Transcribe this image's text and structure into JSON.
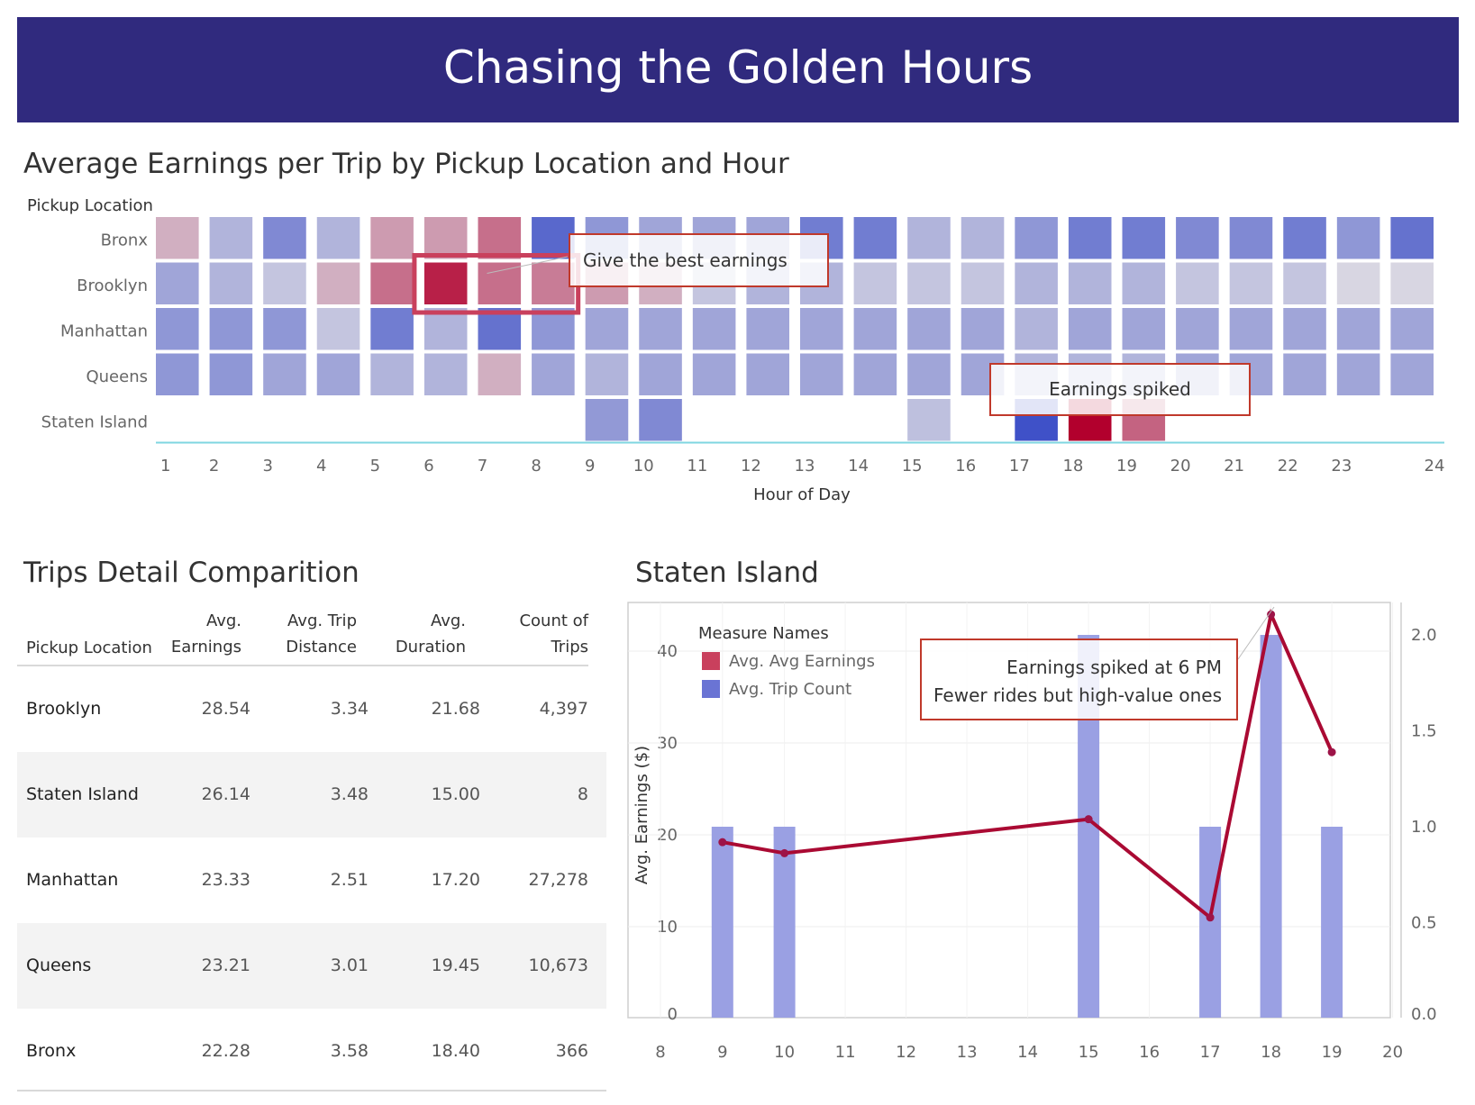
{
  "header": {
    "title": "Chasing the Golden Hours"
  },
  "heatmap": {
    "title": "Average Earnings per Trip by Pickup Location and Hour",
    "callouts": {
      "best": "Give the best earnings",
      "spike": "Earnings spiked"
    }
  },
  "table": {
    "title": "Trips Detail Comparition",
    "headers": {
      "location": "Pickup Location",
      "earnings": [
        "Avg.",
        "Earnings"
      ],
      "distance": [
        "Avg. Trip",
        "Distance"
      ],
      "duration": [
        "Avg.",
        "Duration"
      ],
      "count": [
        "Count of",
        "Trips"
      ]
    },
    "rows": [
      {
        "location": "Brooklyn",
        "earnings": "28.54",
        "distance": "3.34",
        "duration": "21.68",
        "count": "4,397"
      },
      {
        "location": "Staten Island",
        "earnings": "26.14",
        "distance": "3.48",
        "duration": "15.00",
        "count": "8"
      },
      {
        "location": "Manhattan",
        "earnings": "23.33",
        "distance": "2.51",
        "duration": "17.20",
        "count": "27,278"
      },
      {
        "location": "Queens",
        "earnings": "23.21",
        "distance": "3.01",
        "duration": "19.45",
        "count": "10,673"
      },
      {
        "location": "Bronx",
        "earnings": "22.28",
        "distance": "3.58",
        "duration": "18.40",
        "count": "366"
      }
    ]
  },
  "line_panel": {
    "title": "Staten Island",
    "callout": [
      "Earnings spiked at 6 PM",
      "Fewer rides but high-value ones"
    ]
  },
  "colors": {
    "banner": "#302a7e",
    "high": "#b2002d",
    "low": "#3f51c8",
    "bar": "#9aa0e3",
    "line": "#aa0a33",
    "callout_border": "#c0392b"
  },
  "chart_data": [
    {
      "type": "heatmap",
      "title": "Average Earnings per Trip by Pickup Location and Hour",
      "xlabel": "Hour of Day",
      "ylabel": "Pickup Location",
      "x": [
        1,
        2,
        3,
        4,
        5,
        6,
        7,
        8,
        9,
        10,
        11,
        12,
        13,
        14,
        15,
        16,
        17,
        18,
        19,
        20,
        21,
        22,
        23,
        24
      ],
      "y": [
        "Bronx",
        "Brooklyn",
        "Manhattan",
        "Queens",
        "Staten Island"
      ],
      "values": [
        [
          24,
          21,
          18,
          21,
          25,
          25,
          28,
          15,
          19,
          20,
          20,
          20,
          17,
          17,
          21,
          21,
          19,
          17,
          17,
          18,
          18,
          17,
          19,
          16
        ],
        [
          20,
          21,
          22,
          24,
          28,
          36,
          28,
          27,
          25,
          24,
          22,
          21,
          21,
          22,
          22,
          22,
          21,
          21,
          21,
          22,
          22,
          22,
          23,
          23
        ],
        [
          19,
          19,
          19,
          22,
          17,
          21,
          16,
          19,
          20,
          20,
          20,
          20,
          20,
          20,
          20,
          20,
          21,
          20,
          20,
          20,
          20,
          20,
          20,
          20
        ],
        [
          19,
          19,
          20,
          20,
          21,
          21,
          24,
          20,
          21,
          20,
          20,
          20,
          20,
          20,
          20,
          20,
          21,
          21,
          21,
          20,
          20,
          20,
          20,
          20
        ],
        [
          null,
          null,
          null,
          null,
          null,
          null,
          null,
          null,
          19.2,
          18,
          null,
          null,
          null,
          null,
          21.7,
          null,
          11,
          44,
          29,
          null,
          null,
          null,
          null,
          null
        ]
      ],
      "highlight": {
        "row": "Brooklyn",
        "hours": [
          6,
          7,
          8
        ]
      },
      "annotations": [
        "Give the best earnings",
        "Earnings spiked"
      ]
    },
    {
      "type": "table",
      "title": "Trips Detail Comparition",
      "columns": [
        "Pickup Location",
        "Avg. Earnings",
        "Avg. Trip Distance",
        "Avg. Duration",
        "Count of Trips"
      ],
      "rows": [
        [
          "Brooklyn",
          28.54,
          3.34,
          21.68,
          4397
        ],
        [
          "Staten Island",
          26.14,
          3.48,
          15.0,
          8
        ],
        [
          "Manhattan",
          23.33,
          2.51,
          17.2,
          27278
        ],
        [
          "Queens",
          23.21,
          3.01,
          19.45,
          10673
        ],
        [
          "Bronx",
          22.28,
          3.58,
          18.4,
          366
        ]
      ]
    },
    {
      "type": "bar",
      "title": "Staten Island",
      "x": [
        9,
        10,
        15,
        17,
        18,
        19
      ],
      "xticks": [
        8,
        9,
        10,
        11,
        12,
        13,
        14,
        15,
        16,
        17,
        18,
        19,
        20
      ],
      "xlim": [
        8,
        20
      ],
      "ylabel": "Avg. Earnings ($)",
      "ylim": [
        0,
        45
      ],
      "yticks": [
        0,
        10,
        20,
        30,
        40
      ],
      "y2lim": [
        0,
        2.1
      ],
      "y2ticks": [
        "0.0",
        "0.5",
        "1.0",
        "1.5",
        "2.0"
      ],
      "legend": {
        "title": "Measure Names",
        "position": "top-left"
      },
      "series": [
        {
          "name": "Avg. Avg Earnings",
          "kind": "line",
          "axis": "left",
          "values": [
            19.2,
            18.0,
            21.7,
            11.0,
            44.0,
            29.0
          ]
        },
        {
          "name": "Avg. Trip Count",
          "kind": "bar",
          "axis": "right",
          "values": [
            1,
            1,
            2,
            1,
            2,
            1
          ]
        }
      ],
      "annotation": [
        "Earnings spiked at 6 PM",
        "Fewer rides but high-value ones"
      ]
    }
  ]
}
